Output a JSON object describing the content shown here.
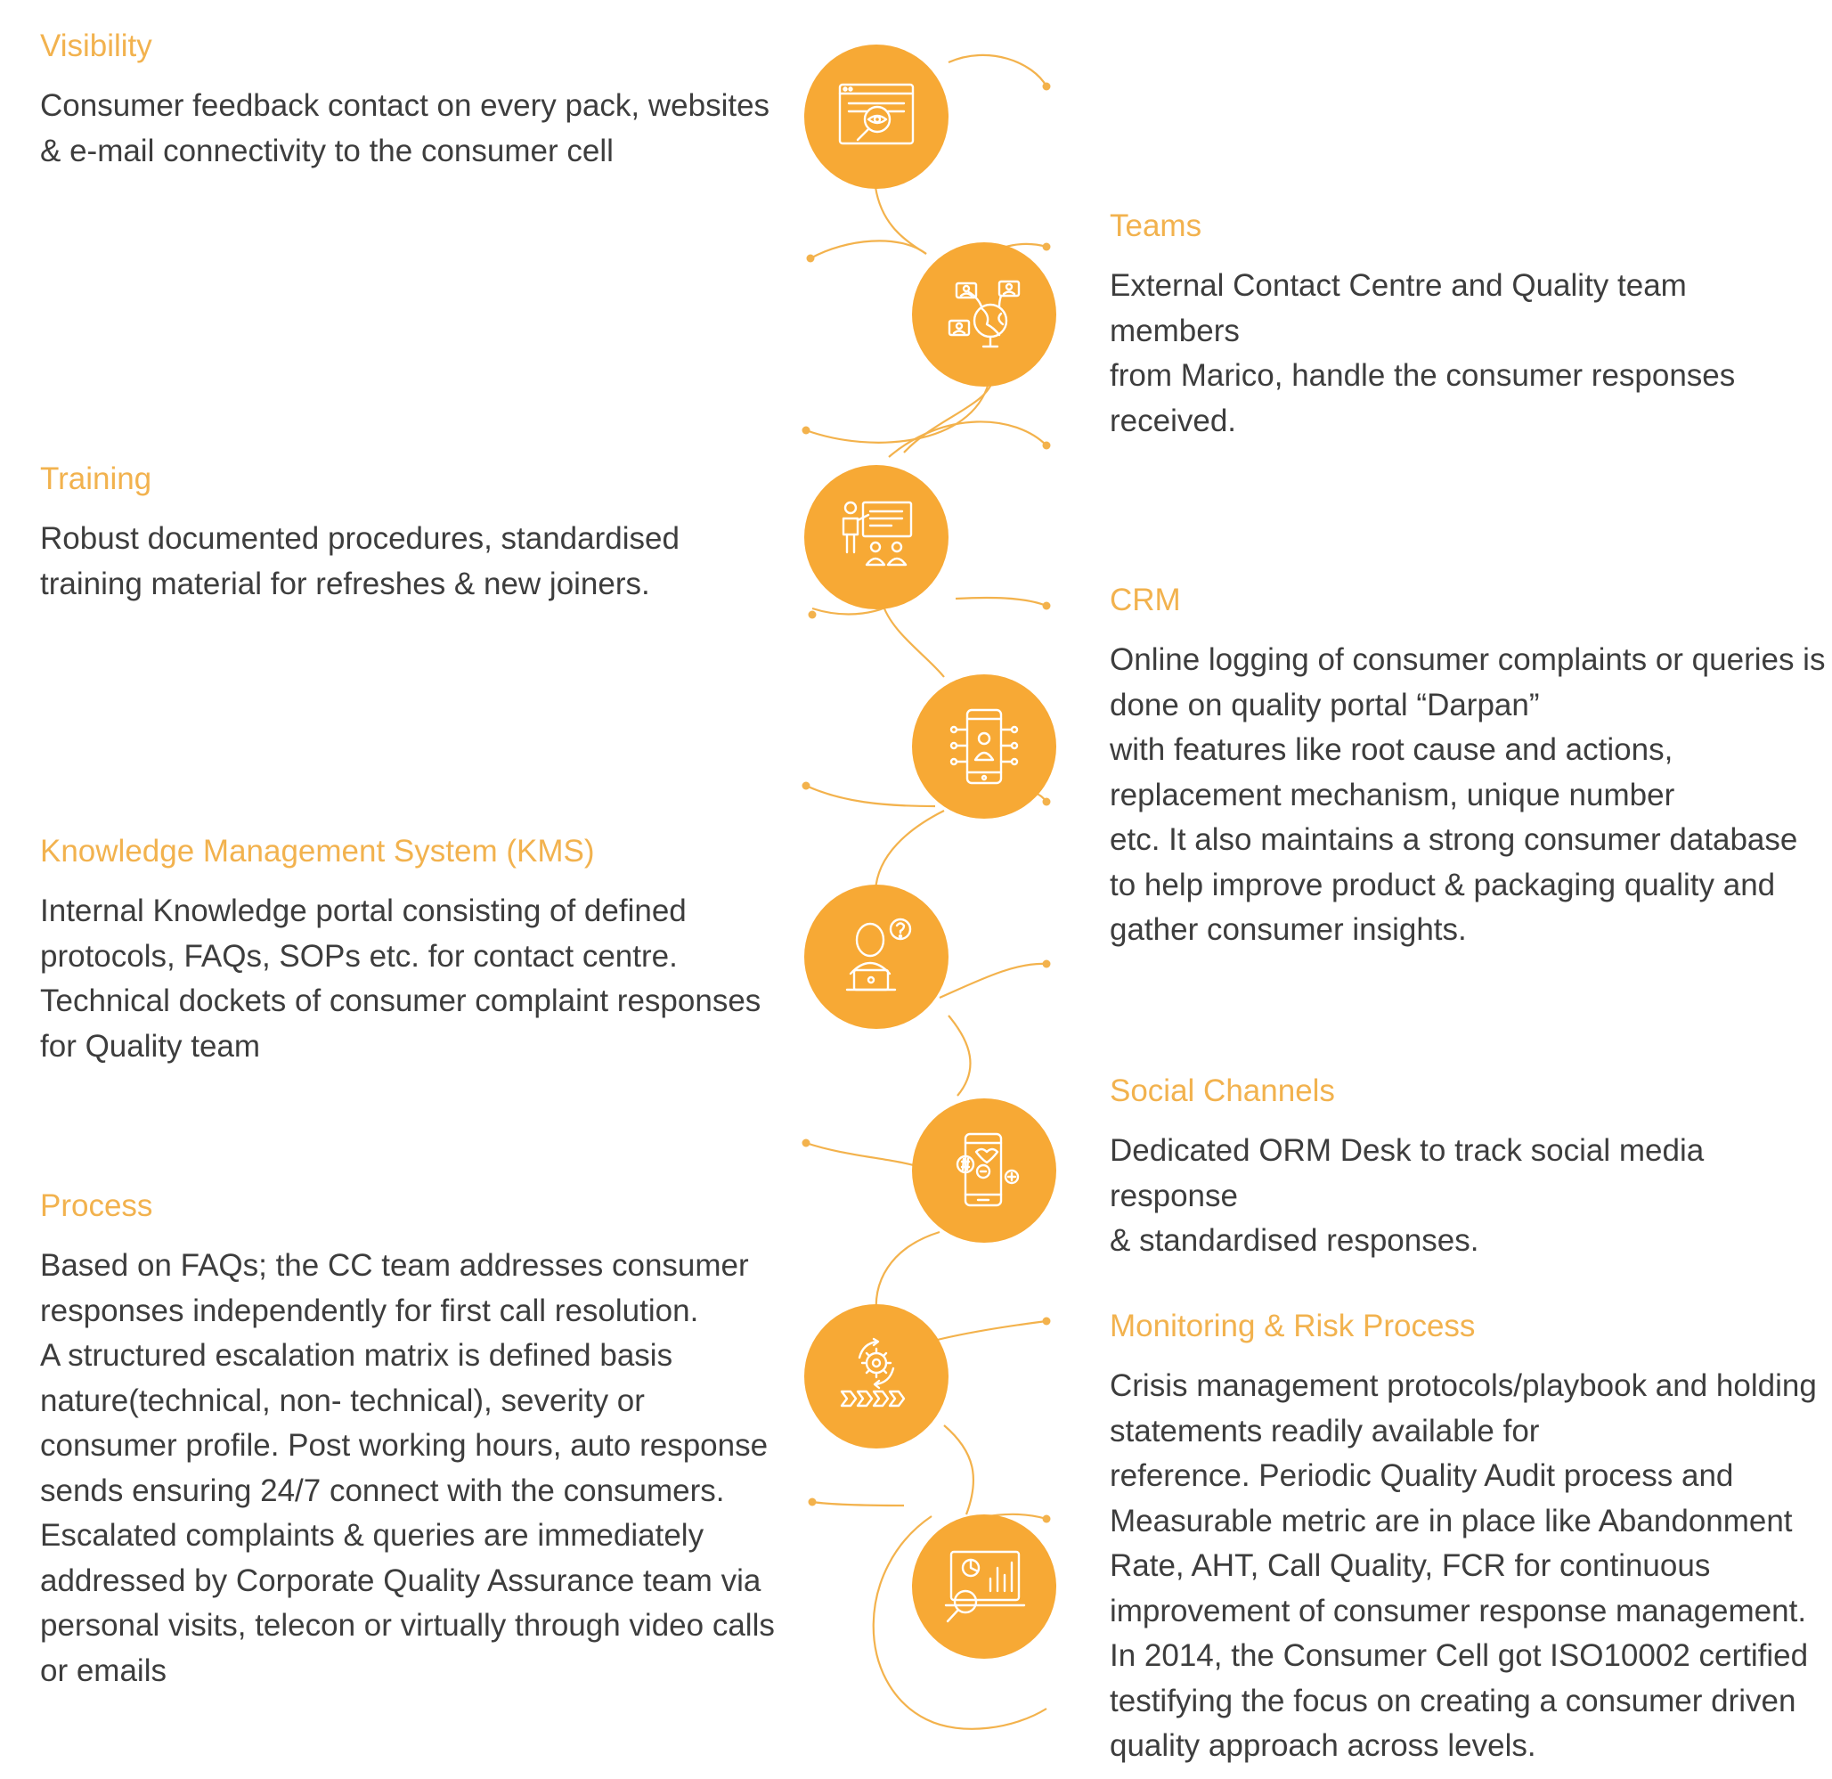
{
  "colors": {
    "accent": "#f7a935",
    "title": "#f2b24e",
    "body_text": "#3d3d3d",
    "connector": "#f3b24c"
  },
  "left_items": [
    {
      "title": "Visibility",
      "body": "Consumer feedback contact on every pack, websites\n& e-mail connectivity to the consumer cell"
    },
    {
      "title": "Training",
      "body": "Robust documented procedures, standardised\ntraining material for refreshes & new joiners."
    },
    {
      "title": "Knowledge Management System (KMS)",
      "body": "Internal Knowledge portal consisting of defined\nprotocols, FAQs, SOPs etc. for contact centre.\nTechnical dockets of consumer complaint responses\nfor Quality team"
    },
    {
      "title": "Process",
      "body": "Based on FAQs; the CC team addresses consumer\nresponses independently for first call resolution.\nA structured escalation matrix is defined basis\nnature(technical, non- technical), severity or\nconsumer profile. Post working hours, auto response\nsends ensuring 24/7 connect with the consumers.\nEscalated complaints & queries are immediately\naddressed by Corporate Quality Assurance team via\npersonal visits, telecon or virtually through video calls\nor emails"
    }
  ],
  "right_items": [
    {
      "title": "Teams",
      "body": "External Contact Centre and Quality team members\nfrom Marico, handle the consumer responses\nreceived."
    },
    {
      "title": "CRM",
      "body": "Online logging of consumer complaints or queries is\ndone on quality portal “Darpan”\nwith features like root cause and actions,\nreplacement mechanism, unique number\netc. It also maintains a strong consumer database\nto help improve product & packaging quality and\ngather consumer insights."
    },
    {
      "title": "Social Channels",
      "body": "Dedicated ORM Desk to track social media response\n& standardised responses."
    },
    {
      "title": "Monitoring & Risk Process",
      "body": "Crisis management protocols/playbook and holding\nstatements readily available for\nreference. Periodic Quality Audit process and\nMeasurable metric are in place like Abandonment\nRate, AHT, Call Quality, FCR for continuous\nimprovement of consumer response management.\nIn 2014, the Consumer Cell got ISO10002 certified\ntestifying the focus on creating a consumer driven\nquality approach across levels."
    }
  ],
  "nodes": [
    {
      "icon": "browser-eye-search-icon"
    },
    {
      "icon": "team-globe-icon"
    },
    {
      "icon": "trainer-presentation-icon"
    },
    {
      "icon": "mobile-user-crm-icon"
    },
    {
      "icon": "person-question-laptop-icon"
    },
    {
      "icon": "social-media-phone-icon"
    },
    {
      "icon": "process-gear-arrows-icon"
    },
    {
      "icon": "analytics-dashboard-search-icon"
    }
  ]
}
